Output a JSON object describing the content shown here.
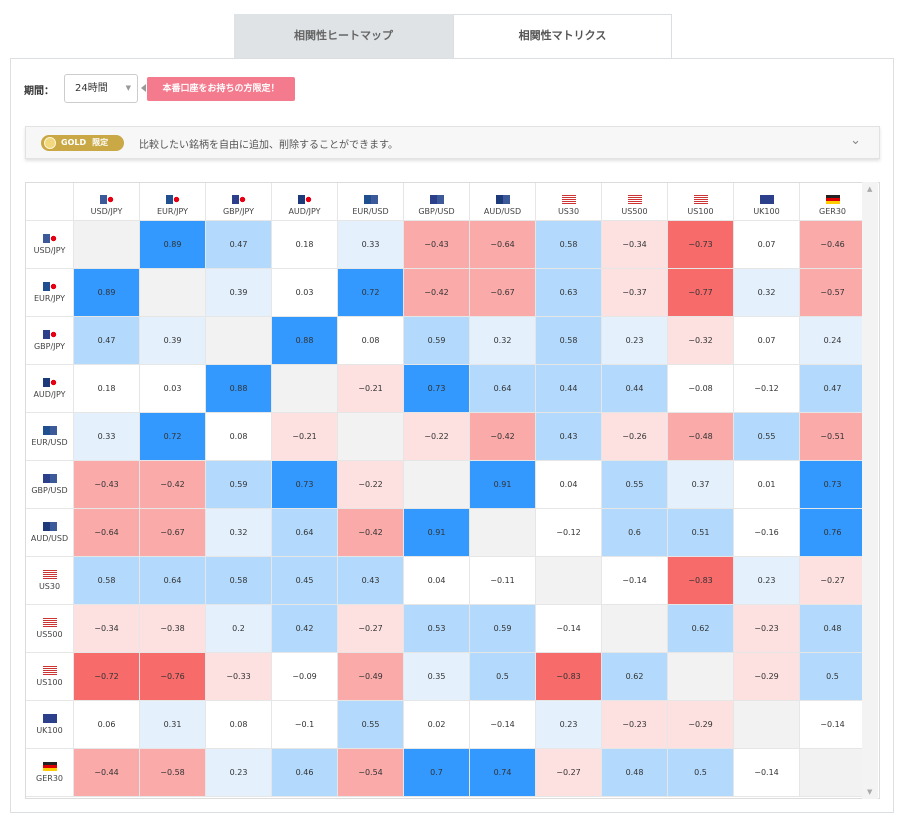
{
  "tabs": [
    {
      "label": "相関性ヒートマップ",
      "active": false
    },
    {
      "label": "相関性マトリクス",
      "active": true
    }
  ],
  "filters": {
    "period_label": "期間：",
    "period_value": "24時間",
    "promo_label": "本番口座をお持ちの方限定！"
  },
  "gold_bar": {
    "badge_label": "GOLD",
    "badge_limited": "限定",
    "description": "比較したい銘柄を自由に追加、削除することができます。"
  },
  "matrix": {
    "symbols": [
      {
        "label": "USD/JPY",
        "flags": [
          "us",
          "jp"
        ]
      },
      {
        "label": "EUR/JPY",
        "flags": [
          "eu",
          "jp"
        ]
      },
      {
        "label": "GBP/JPY",
        "flags": [
          "gb",
          "jp"
        ]
      },
      {
        "label": "AUD/JPY",
        "flags": [
          "au",
          "jp"
        ]
      },
      {
        "label": "EUR/USD",
        "flags": [
          "eu",
          "us"
        ]
      },
      {
        "label": "GBP/USD",
        "flags": [
          "gb",
          "us"
        ]
      },
      {
        "label": "AUD/USD",
        "flags": [
          "au",
          "us"
        ]
      },
      {
        "label": "US30",
        "flags": [
          "us"
        ]
      },
      {
        "label": "US500",
        "flags": [
          "us"
        ]
      },
      {
        "label": "US100",
        "flags": [
          "us"
        ]
      },
      {
        "label": "UK100",
        "flags": [
          "gb"
        ]
      },
      {
        "label": "GER30",
        "flags": [
          "de"
        ]
      }
    ],
    "values": [
      [
        null,
        "0.89",
        "0.47",
        "0.18",
        "0.33",
        "−0.43",
        "−0.64",
        "0.58",
        "−0.34",
        "−0.73",
        "0.07",
        "−0.46"
      ],
      [
        "0.89",
        null,
        "0.39",
        "0.03",
        "0.72",
        "−0.42",
        "−0.67",
        "0.63",
        "−0.37",
        "−0.77",
        "0.32",
        "−0.57"
      ],
      [
        "0.47",
        "0.39",
        null,
        "0.88",
        "0.08",
        "0.59",
        "0.32",
        "0.58",
        "0.23",
        "−0.32",
        "0.07",
        "0.24"
      ],
      [
        "0.18",
        "0.03",
        "0.88",
        null,
        "−0.21",
        "0.73",
        "0.64",
        "0.44",
        "0.44",
        "−0.08",
        "−0.12",
        "0.47"
      ],
      [
        "0.33",
        "0.72",
        "0.08",
        "−0.21",
        null,
        "−0.22",
        "−0.42",
        "0.43",
        "−0.26",
        "−0.48",
        "0.55",
        "−0.51"
      ],
      [
        "−0.43",
        "−0.42",
        "0.59",
        "0.73",
        "−0.22",
        null,
        "0.91",
        "0.04",
        "0.55",
        "0.37",
        "0.01",
        "0.73"
      ],
      [
        "−0.64",
        "−0.67",
        "0.32",
        "0.64",
        "−0.42",
        "0.91",
        null,
        "−0.12",
        "0.6",
        "0.51",
        "−0.16",
        "0.76"
      ],
      [
        "0.58",
        "0.64",
        "0.58",
        "0.45",
        "0.43",
        "0.04",
        "−0.11",
        null,
        "−0.14",
        "−0.83",
        "0.23",
        "−0.27"
      ],
      [
        "−0.34",
        "−0.38",
        "0.2",
        "0.42",
        "−0.27",
        "0.53",
        "0.59",
        "−0.14",
        null,
        "0.62",
        "−0.23",
        "0.48"
      ],
      [
        "−0.72",
        "−0.76",
        "−0.33",
        "−0.09",
        "−0.49",
        "0.35",
        "0.5",
        "−0.83",
        "0.62",
        null,
        "−0.29",
        "0.5"
      ],
      [
        "0.06",
        "0.31",
        "0.08",
        "−0.1",
        "0.55",
        "0.02",
        "−0.14",
        "0.23",
        "−0.23",
        "−0.29",
        null,
        "−0.14"
      ],
      [
        "−0.44",
        "−0.58",
        "0.23",
        "0.46",
        "−0.54",
        "0.7",
        "0.74",
        "−0.27",
        "0.48",
        "0.5",
        "−0.14",
        null
      ]
    ]
  },
  "colors": {
    "strong_pos": "#3399ff",
    "mid_pos": "#b3dafd",
    "weak_pos": "#e4f1fd",
    "neutral": "#ffffff",
    "weak_neg": "#fde0e0",
    "mid_neg": "#fbaaaa",
    "strong_neg": "#f76b6b",
    "diagonal": "#f2f2f2"
  }
}
